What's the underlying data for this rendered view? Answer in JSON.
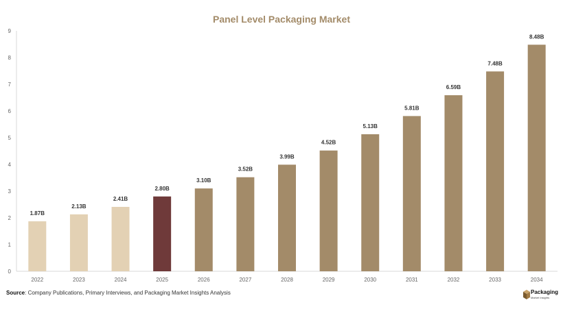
{
  "chart_data": {
    "type": "bar",
    "title": "Panel Level Packaging Market",
    "categories": [
      "2022",
      "2023",
      "2024",
      "2025",
      "2026",
      "2027",
      "2028",
      "2029",
      "2030",
      "2031",
      "2032",
      "2033",
      "2034"
    ],
    "values": [
      1.87,
      2.13,
      2.41,
      2.8,
      3.1,
      3.52,
      3.99,
      4.52,
      5.13,
      5.81,
      6.59,
      7.48,
      8.48
    ],
    "data_labels": [
      "1.87B",
      "2.13B",
      "2.41B",
      "2.80B",
      "3.10B",
      "3.52B",
      "3.99B",
      "4.52B",
      "5.13B",
      "5.81B",
      "6.59B",
      "7.48B",
      "8.48B"
    ],
    "bar_colors": [
      "#e3d1b4",
      "#e3d1b4",
      "#e3d1b4",
      "#6f3a3a",
      "#a38b69",
      "#a38b69",
      "#a38b69",
      "#a38b69",
      "#a38b69",
      "#a38b69",
      "#a38b69",
      "#a38b69",
      "#a38b69"
    ],
    "xlabel": "",
    "ylabel": "",
    "ylim": [
      0,
      9
    ],
    "yticks": [
      "0",
      "1",
      "2",
      "3",
      "4",
      "5",
      "6",
      "7",
      "8",
      "9"
    ],
    "grid": false,
    "legend": "none"
  },
  "source": {
    "label": "Source",
    "text": ": Company Publications, Primary Interviews, and Packaging Market Insights Analysis"
  },
  "logo": {
    "line1": "Packaging",
    "line2": "Market Insights"
  },
  "colors": {
    "title": "#a38b69",
    "axis": "#d9d9d9",
    "tick_text": "#666666",
    "label_text": "#333333"
  }
}
